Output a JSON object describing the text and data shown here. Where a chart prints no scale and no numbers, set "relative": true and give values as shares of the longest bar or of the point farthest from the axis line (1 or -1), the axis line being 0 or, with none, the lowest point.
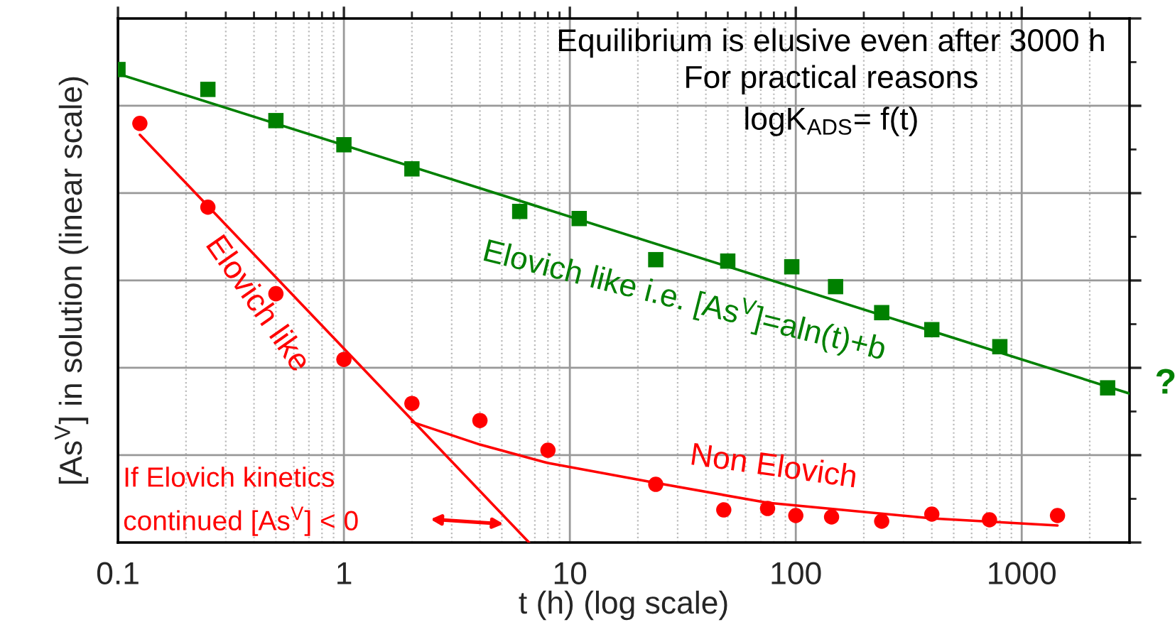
{
  "chart_data": {
    "type": "scatter",
    "relative": true,
    "log": "x",
    "grid": true,
    "legend": false,
    "tick_labels": "x",
    "xlabel": "t (h) (log scale)",
    "ylabel": "[As$^{V}$] in solution (linear scale)",
    "xlim": [
      0.1,
      3000
    ],
    "xticks": [
      0.1,
      1,
      10,
      100,
      1000
    ],
    "annotations": [
      "Equilibrium is elusive even after 3000 h",
      "For practical reasons",
      "logK$_{ADS}$= f(t)",
      "If Elovich kinetics\ncontinued [As$^{V}$] < 0",
      "?"
    ],
    "series": [
      {
        "marker": "square",
        "color": "#008000",
        "x": [
          0.1,
          0.25,
          0.5,
          1,
          2,
          6,
          11,
          24,
          50,
          96,
          150,
          240,
          400,
          800,
          2400
        ],
        "values": [
          1,
          0.958,
          0.892,
          0.841,
          0.79,
          0.7,
          0.685,
          0.598,
          0.595,
          0.583,
          0.541,
          0.486,
          0.45,
          0.414,
          0.327
        ]
      },
      {
        "type": "line",
        "marker": "none",
        "line_style": "solid",
        "name": "Elovich like i.e. [As$^{V}$]=aln(t)+b",
        "color": "#008000",
        "x": [
          0.1,
          3000
        ],
        "values": [
          0.991,
          0.315
        ]
      },
      {
        "marker": "circle",
        "color": "#ff0000",
        "x": [
          0.125,
          0.25,
          0.5,
          1,
          2,
          4,
          8,
          24,
          48,
          75,
          100,
          144,
          240,
          400,
          720,
          1440
        ],
        "values": [
          0.886,
          0.709,
          0.526,
          0.387,
          0.294,
          0.258,
          0.195,
          0.123,
          0.069,
          0.072,
          0.057,
          0.054,
          0.045,
          0.06,
          0.048,
          0.057
        ]
      },
      {
        "type": "line",
        "marker": "none",
        "line_style": "solid",
        "name": "Elovich like",
        "color": "#ff0000",
        "x": [
          0.125,
          6.6
        ],
        "values": [
          0.862,
          0
        ]
      },
      {
        "type": "line",
        "marker": "none",
        "line_style": "solid",
        "name": "Non Elovich",
        "color": "#ff0000",
        "x": [
          2,
          4,
          8,
          24,
          75,
          400,
          1440
        ],
        "values": [
          0.255,
          0.207,
          0.168,
          0.126,
          0.084,
          0.051,
          0.036
        ]
      }
    ]
  }
}
